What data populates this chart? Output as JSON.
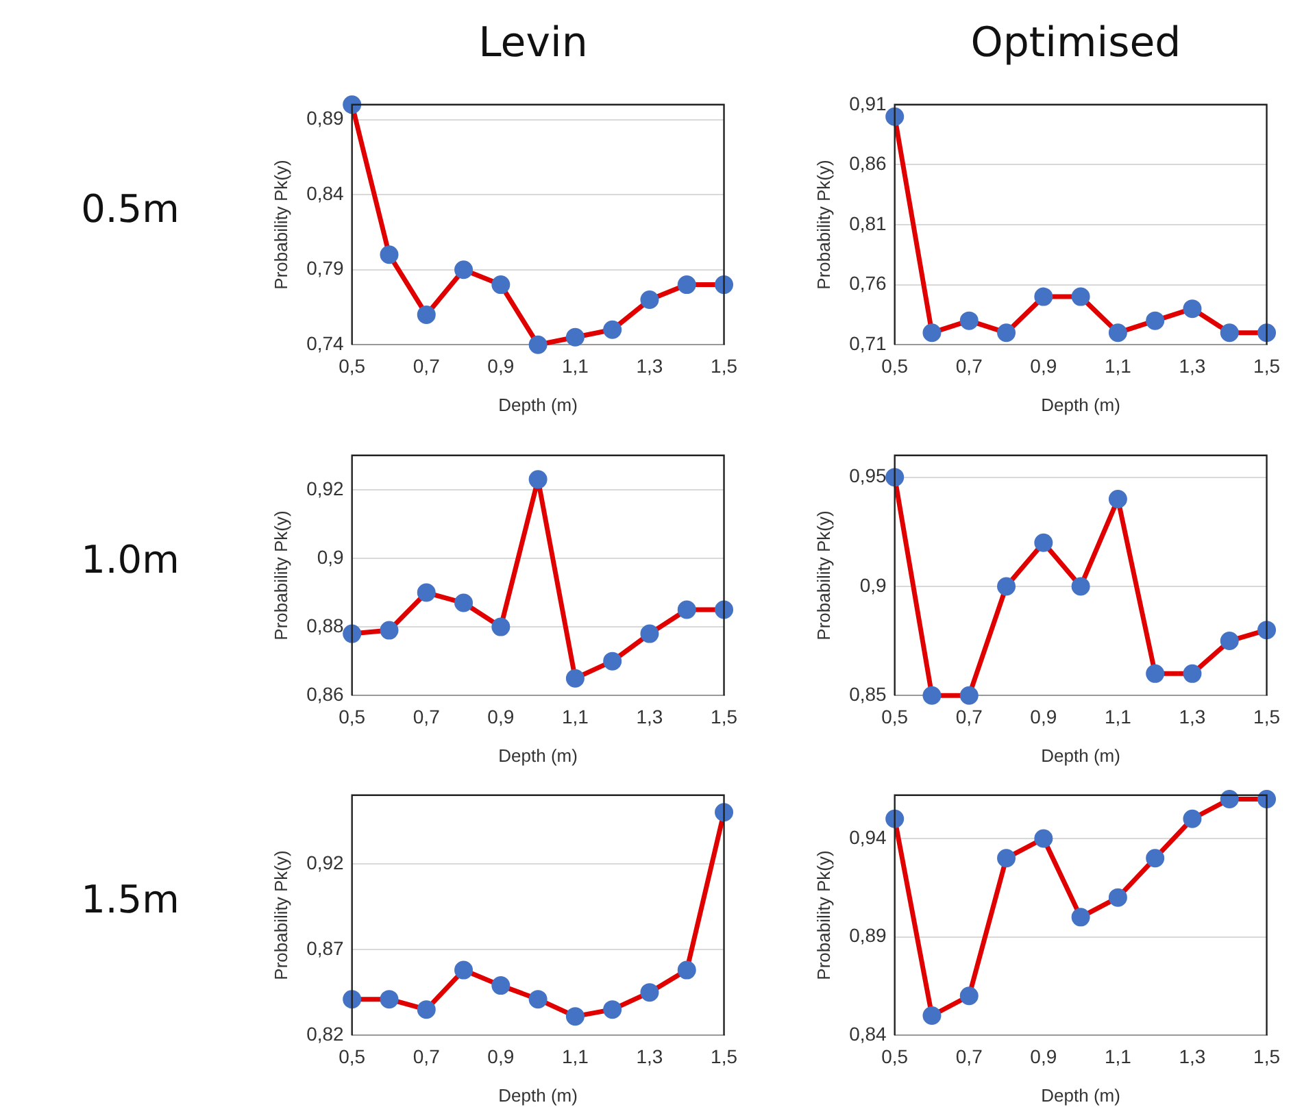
{
  "chart_data": [
    {
      "type": "line",
      "title": "Levin",
      "annotations": [
        "0.5m"
      ],
      "xlabel": "Depth (m)",
      "ylabel": "Probability Pk(y)",
      "x": [
        0.5,
        0.6,
        0.7,
        0.8,
        0.9,
        1.0,
        1.1,
        1.2,
        1.3,
        1.4,
        1.5
      ],
      "xlim": [
        0.5,
        1.5
      ],
      "xticks": [
        {
          "value": 0.5,
          "label": "0,5"
        },
        {
          "value": 0.7,
          "label": "0,7"
        },
        {
          "value": 0.9,
          "label": "0,9"
        },
        {
          "value": 1.1,
          "label": "1,1"
        },
        {
          "value": 1.3,
          "label": "1,3"
        },
        {
          "value": 1.5,
          "label": "1,5"
        }
      ],
      "ylim": [
        0.74,
        0.9
      ],
      "yticks": [
        {
          "value": 0.74,
          "label": "0,74"
        },
        {
          "value": 0.79,
          "label": "0,79"
        },
        {
          "value": 0.84,
          "label": "0,84"
        },
        {
          "value": 0.89,
          "label": "0,89"
        }
      ],
      "grid": "y",
      "marker": "circle",
      "line_style": "solid",
      "series": [
        {
          "color": "#e00000",
          "values": [
            0.9,
            0.8,
            0.76,
            0.79,
            0.78,
            0.74,
            0.745,
            0.75,
            0.77,
            0.78,
            0.78
          ]
        }
      ]
    },
    {
      "type": "line",
      "title": "Optimised",
      "xlabel": "Depth (m)",
      "ylabel": "Probability Pk(y)",
      "x": [
        0.5,
        0.6,
        0.7,
        0.8,
        0.9,
        1.0,
        1.1,
        1.2,
        1.3,
        1.4,
        1.5
      ],
      "xlim": [
        0.5,
        1.5
      ],
      "xticks": [
        {
          "value": 0.5,
          "label": "0,5"
        },
        {
          "value": 0.7,
          "label": "0,7"
        },
        {
          "value": 0.9,
          "label": "0,9"
        },
        {
          "value": 1.1,
          "label": "1,1"
        },
        {
          "value": 1.3,
          "label": "1,3"
        },
        {
          "value": 1.5,
          "label": "1,5"
        }
      ],
      "ylim": [
        0.71,
        0.91
      ],
      "yticks": [
        {
          "value": 0.71,
          "label": "0,71"
        },
        {
          "value": 0.76,
          "label": "0,76"
        },
        {
          "value": 0.81,
          "label": "0,81"
        },
        {
          "value": 0.86,
          "label": "0,86"
        },
        {
          "value": 0.91,
          "label": "0,91"
        }
      ],
      "grid": "y",
      "marker": "circle",
      "line_style": "solid",
      "series": [
        {
          "color": "#e00000",
          "values": [
            0.9,
            0.72,
            0.73,
            0.72,
            0.75,
            0.75,
            0.72,
            0.73,
            0.74,
            0.72,
            0.72
          ]
        }
      ]
    },
    {
      "type": "line",
      "annotations": [
        "1.0m"
      ],
      "xlabel": "Depth (m)",
      "ylabel": "Probability Pk(y)",
      "x": [
        0.5,
        0.6,
        0.7,
        0.8,
        0.9,
        1.0,
        1.1,
        1.2,
        1.3,
        1.4,
        1.5
      ],
      "xlim": [
        0.5,
        1.5
      ],
      "xticks": [
        {
          "value": 0.5,
          "label": "0,5"
        },
        {
          "value": 0.7,
          "label": "0,7"
        },
        {
          "value": 0.9,
          "label": "0,9"
        },
        {
          "value": 1.1,
          "label": "1,1"
        },
        {
          "value": 1.3,
          "label": "1,3"
        },
        {
          "value": 1.5,
          "label": "1,5"
        }
      ],
      "ylim": [
        0.86,
        0.93
      ],
      "yticks": [
        {
          "value": 0.86,
          "label": "0,86"
        },
        {
          "value": 0.88,
          "label": "0,88"
        },
        {
          "value": 0.9,
          "label": "0,9"
        },
        {
          "value": 0.92,
          "label": "0,92"
        }
      ],
      "grid": "y",
      "marker": "circle",
      "line_style": "solid",
      "series": [
        {
          "color": "#e00000",
          "values": [
            0.878,
            0.879,
            0.89,
            0.887,
            0.88,
            0.923,
            0.865,
            0.87,
            0.878,
            0.885,
            0.885
          ]
        }
      ]
    },
    {
      "type": "line",
      "xlabel": "Depth (m)",
      "ylabel": "Probability Pk(y)",
      "x": [
        0.5,
        0.6,
        0.7,
        0.8,
        0.9,
        1.0,
        1.1,
        1.2,
        1.3,
        1.4,
        1.5
      ],
      "xlim": [
        0.5,
        1.5
      ],
      "xticks": [
        {
          "value": 0.5,
          "label": "0,5"
        },
        {
          "value": 0.7,
          "label": "0,7"
        },
        {
          "value": 0.9,
          "label": "0,9"
        },
        {
          "value": 1.1,
          "label": "1,1"
        },
        {
          "value": 1.3,
          "label": "1,3"
        },
        {
          "value": 1.5,
          "label": "1,5"
        }
      ],
      "ylim": [
        0.85,
        0.96
      ],
      "yticks": [
        {
          "value": 0.85,
          "label": "0,85"
        },
        {
          "value": 0.9,
          "label": "0,9"
        },
        {
          "value": 0.95,
          "label": "0,95"
        }
      ],
      "grid": "y",
      "marker": "circle",
      "line_style": "solid",
      "series": [
        {
          "color": "#e00000",
          "values": [
            0.95,
            0.85,
            0.85,
            0.9,
            0.92,
            0.9,
            0.94,
            0.86,
            0.86,
            0.875,
            0.88
          ]
        }
      ]
    },
    {
      "type": "line",
      "annotations": [
        "1.5m"
      ],
      "xlabel": "Depth (m)",
      "ylabel": "Probability Pk(y)",
      "x": [
        0.5,
        0.6,
        0.7,
        0.8,
        0.9,
        1.0,
        1.1,
        1.2,
        1.3,
        1.4,
        1.5
      ],
      "xlim": [
        0.5,
        1.5
      ],
      "xticks": [
        {
          "value": 0.5,
          "label": "0,5"
        },
        {
          "value": 0.7,
          "label": "0,7"
        },
        {
          "value": 0.9,
          "label": "0,9"
        },
        {
          "value": 1.1,
          "label": "1,1"
        },
        {
          "value": 1.3,
          "label": "1,3"
        },
        {
          "value": 1.5,
          "label": "1,5"
        }
      ],
      "ylim": [
        0.82,
        0.96
      ],
      "yticks": [
        {
          "value": 0.82,
          "label": "0,82"
        },
        {
          "value": 0.87,
          "label": "0,87"
        },
        {
          "value": 0.92,
          "label": "0,92"
        }
      ],
      "grid": "y",
      "marker": "circle",
      "line_style": "solid",
      "series": [
        {
          "color": "#e00000",
          "values": [
            0.841,
            0.841,
            0.835,
            0.858,
            0.849,
            0.841,
            0.831,
            0.835,
            0.845,
            0.858,
            0.95
          ]
        }
      ]
    },
    {
      "type": "line",
      "xlabel": "Depth (m)",
      "ylabel": "Probability Pk(y)",
      "x": [
        0.5,
        0.6,
        0.7,
        0.8,
        0.9,
        1.0,
        1.1,
        1.2,
        1.3,
        1.4,
        1.5
      ],
      "xlim": [
        0.5,
        1.5
      ],
      "xticks": [
        {
          "value": 0.5,
          "label": "0,5"
        },
        {
          "value": 0.7,
          "label": "0,7"
        },
        {
          "value": 0.9,
          "label": "0,9"
        },
        {
          "value": 1.1,
          "label": "1,1"
        },
        {
          "value": 1.3,
          "label": "1,3"
        },
        {
          "value": 1.5,
          "label": "1,5"
        }
      ],
      "ylim": [
        0.84,
        0.962
      ],
      "yticks": [
        {
          "value": 0.84,
          "label": "0,84"
        },
        {
          "value": 0.89,
          "label": "0,89"
        },
        {
          "value": 0.94,
          "label": "0,94"
        }
      ],
      "grid": "y",
      "marker": "circle",
      "line_style": "solid",
      "series": [
        {
          "color": "#e00000",
          "values": [
            0.95,
            0.85,
            0.86,
            0.93,
            0.94,
            0.9,
            0.91,
            0.93,
            0.95,
            0.96,
            0.96
          ]
        }
      ]
    }
  ]
}
